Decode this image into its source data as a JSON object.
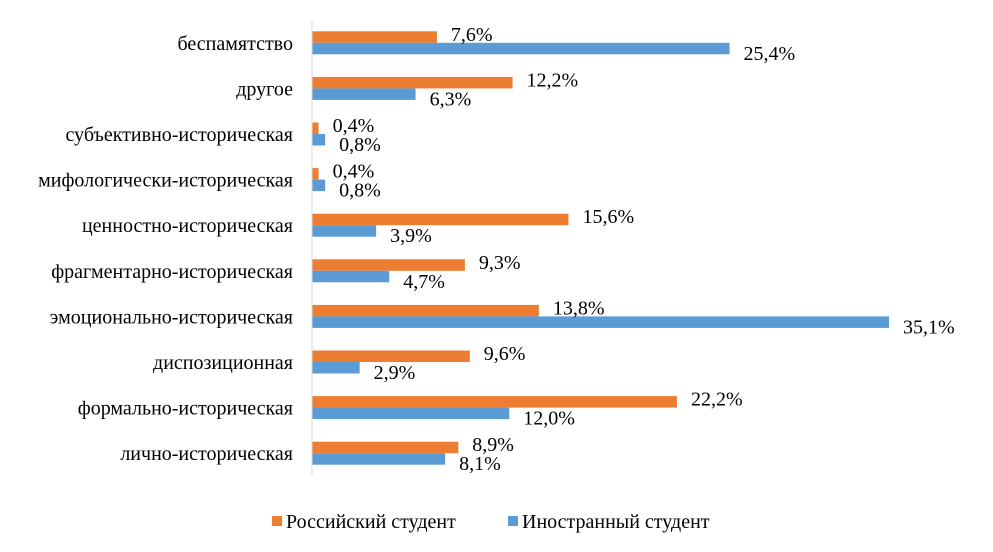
{
  "chart_data": {
    "type": "bar",
    "orientation": "horizontal",
    "title": "",
    "xlabel": "",
    "ylabel": "",
    "xlim": [
      0,
      35.1
    ],
    "grid": false,
    "legend_position": "bottom",
    "categories": [
      "беспамятство",
      "другое",
      "субъективно-историческая",
      "мифологически-историческая",
      "ценностно-историческая",
      "фрагментарно-историческая",
      "эмоционально-историческая",
      "диспозиционная",
      "формально-историческая",
      "лично-историческая"
    ],
    "series": [
      {
        "name": "Российский студент",
        "color": "#ED7D31",
        "values": [
          7.6,
          12.2,
          0.4,
          0.4,
          15.6,
          9.3,
          13.8,
          9.6,
          22.2,
          8.9
        ],
        "labels": [
          "7,6%",
          "12,2%",
          "0,4%",
          "0,4%",
          "15,6%",
          "9,3%",
          "13,8%",
          "9,6%",
          "22,2%",
          "8,9%"
        ]
      },
      {
        "name": "Иностранный студент",
        "color": "#5B9BD5",
        "values": [
          25.4,
          6.3,
          0.8,
          0.8,
          3.9,
          4.7,
          35.1,
          2.9,
          12.0,
          8.1
        ],
        "labels": [
          "25,4%",
          "6,3%",
          "0,8%",
          "0,8%",
          "3,9%",
          "4,7%",
          "35,1%",
          "2,9%",
          "12,0%",
          "8,1%"
        ]
      }
    ]
  }
}
